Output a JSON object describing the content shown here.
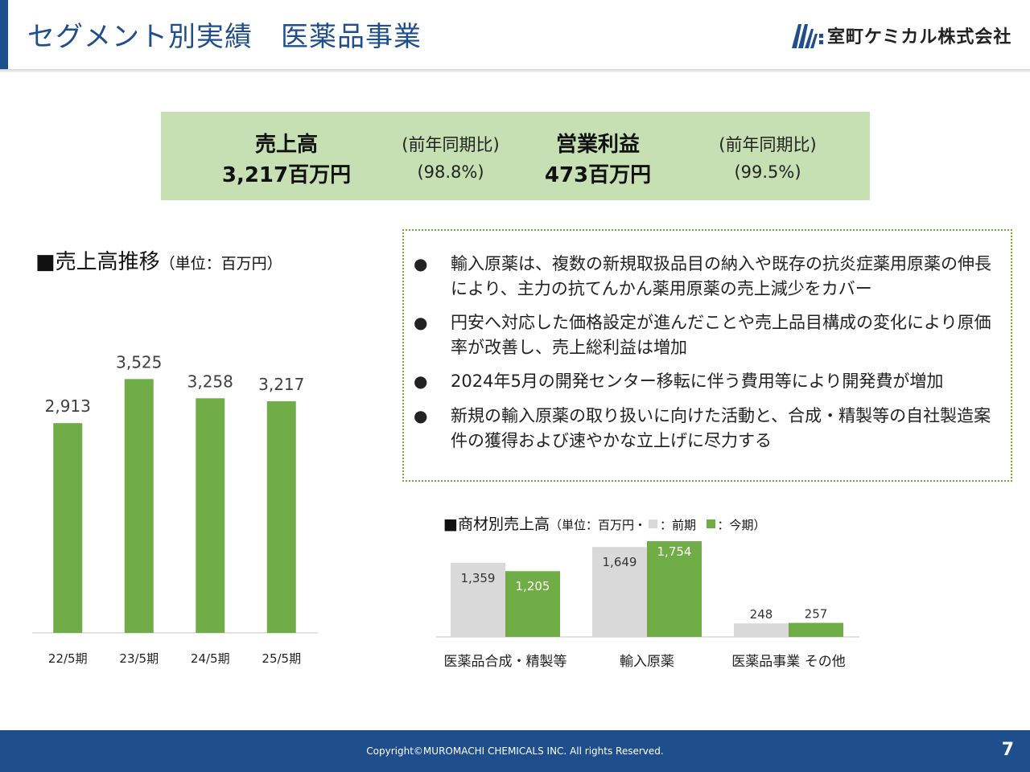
{
  "header": {
    "title": "セグメント別実績　医薬品事業",
    "company": "室町ケミカル株式会社"
  },
  "summary": {
    "sales_label": "売上高",
    "sales_value": "3,217百万円",
    "sales_yoy_label": "(前年同期比)",
    "sales_yoy_value": "(98.8%)",
    "profit_label": "営業利益",
    "profit_value": "473百万円",
    "profit_yoy_label": "(前年同期比)",
    "profit_yoy_value": "(99.5%)"
  },
  "left_chart": {
    "title": "■売上高推移",
    "unit": "（単位：百万円）"
  },
  "bullets": [
    "輸入原薬は、複数の新規取扱品目の納入や既存の抗炎症薬用原薬の伸長により、主力の抗てんかん薬用原薬の売上減少をカバー",
    "円安へ対応した価格設定が進んだことや売上品目構成の変化により原価率が改善し、売上総利益は増加",
    "2024年5月の開発センター移転に伴う費用等により開発費が増加",
    "新規の輸入原薬の取り扱いに向けた活動と、合成・精製等の自社製造案件の獲得および速やかな立上げに尽力する"
  ],
  "bullet_marker": "●",
  "right_chart": {
    "title": "■商材別売上高",
    "unit_prefix": "（単位：百万円・",
    "legend_prev": "：前期",
    "legend_curr": "：今期）"
  },
  "colors": {
    "green": "#70ad47",
    "gray": "#d9d9d9",
    "navy": "#1f4e8c",
    "summary_bg": "#c6e0b4"
  },
  "footer": {
    "copyright": "Copyright©MUROMACHI CHEMICALS INC. All rights Reserved.",
    "page": "7"
  },
  "chart_data": [
    {
      "type": "bar",
      "title": "売上高推移",
      "categories": [
        "22/5期",
        "23/5期",
        "24/5期",
        "25/5期"
      ],
      "values": [
        2913,
        3525,
        3258,
        3217
      ],
      "labels": [
        "2,913",
        "3,525",
        "3,258",
        "3,217"
      ],
      "ylim": [
        0,
        4000
      ],
      "grid": false
    },
    {
      "type": "bar",
      "title": "商材別売上高",
      "categories": [
        "医薬品合成・精製等",
        "輸入原薬",
        "医薬品事業 その他"
      ],
      "series": [
        {
          "name": "前期",
          "values": [
            1359,
            1649,
            248
          ],
          "labels": [
            "1,359",
            "1,649",
            "248"
          ]
        },
        {
          "name": "今期",
          "values": [
            1205,
            1754,
            257
          ],
          "labels": [
            "1,205",
            "1,754",
            "257"
          ]
        }
      ],
      "ylim": [
        0,
        1754
      ],
      "grid": false
    }
  ]
}
